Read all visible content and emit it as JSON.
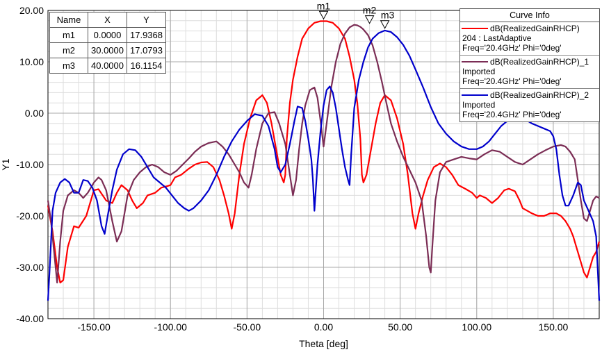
{
  "chart_data": {
    "type": "line",
    "xlabel": "Theta [deg]",
    "ylabel": "Y1",
    "xlim": [
      -180,
      180
    ],
    "ylim": [
      -40,
      20
    ],
    "xticks": [
      -150,
      -100,
      -50,
      0,
      50,
      100,
      150
    ],
    "xtick_labels": [
      "-150.00",
      "-100.00",
      "-50.00",
      "0.00",
      "50.00",
      "100.00",
      "150.00"
    ],
    "yticks": [
      20,
      10,
      0,
      -10,
      -20,
      -30,
      -40
    ],
    "ytick_labels": [
      "20.00",
      "10.00",
      "0.00",
      "-10.00",
      "-20.00",
      "-30.00",
      "-40.00"
    ],
    "grid": true,
    "legend_title": "Curve Info",
    "legend_position": "top-right",
    "series": [
      {
        "name": "dB(RealizedGainRHCP)",
        "desc": [
          "204 : LastAdaptive",
          "Freq='20.4GHz' Phi='0deg'"
        ],
        "color": "#ff0000",
        "x": [
          -180,
          -177,
          -174,
          -172,
          -170,
          -167,
          -163,
          -160,
          -155,
          -150,
          -147,
          -142,
          -138,
          -135,
          -132,
          -128,
          -125,
          -122,
          -118,
          -115,
          -110,
          -106,
          -102,
          -100,
          -97,
          -93,
          -88,
          -84,
          -80,
          -76,
          -72,
          -68,
          -65,
          -62,
          -60,
          -58,
          -55,
          -52,
          -48,
          -44,
          -40,
          -37,
          -34,
          -31,
          -28,
          -26,
          -25,
          -24,
          -22,
          -20,
          -17,
          -14,
          -10,
          -6,
          -2,
          0,
          2,
          6,
          10,
          14,
          17,
          20,
          22,
          24,
          25,
          26,
          28,
          31,
          34,
          37,
          40,
          44,
          48,
          52,
          55,
          58,
          60,
          62,
          65,
          68,
          72,
          76,
          80,
          84,
          88,
          93,
          97,
          100,
          102,
          106,
          110,
          114,
          118,
          121,
          125,
          128,
          130,
          133,
          136,
          140,
          144,
          148,
          152,
          155,
          158,
          161,
          163,
          165,
          167,
          170,
          172,
          174,
          176,
          178,
          180
        ],
        "y": [
          -18.0,
          -23.0,
          -30.0,
          -33.0,
          -32.5,
          -26.0,
          -22.0,
          -22.3,
          -20.0,
          -15.0,
          -14.8,
          -17.0,
          -17.5,
          -15.5,
          -14.0,
          -15.0,
          -17.0,
          -18.5,
          -17.5,
          -16.0,
          -15.5,
          -14.5,
          -14.2,
          -14.0,
          -12.5,
          -12.0,
          -10.8,
          -10.0,
          -9.6,
          -9.5,
          -10.5,
          -13.0,
          -16.0,
          -19.5,
          -22.5,
          -19.5,
          -12.0,
          -6.0,
          -1.0,
          2.5,
          3.5,
          2.0,
          -2.0,
          -7.0,
          -12.0,
          -13.5,
          -12.0,
          -5.0,
          2.0,
          6.5,
          11.0,
          14.5,
          16.5,
          17.6,
          17.9,
          17.9,
          17.9,
          17.6,
          16.5,
          14.5,
          11.0,
          6.5,
          2.0,
          -5.0,
          -12.0,
          -13.5,
          -12.0,
          -7.0,
          -2.0,
          2.0,
          3.5,
          2.5,
          -1.0,
          -6.0,
          -12.0,
          -19.5,
          -22.5,
          -19.5,
          -16.0,
          -13.0,
          -10.5,
          -9.8,
          -10.5,
          -12.0,
          -14.0,
          -14.8,
          -15.5,
          -16.5,
          -16.0,
          -16.5,
          -17.5,
          -16.5,
          -15.0,
          -14.7,
          -15.2,
          -17.0,
          -18.5,
          -19.0,
          -19.5,
          -20.0,
          -20.0,
          -19.5,
          -19.5,
          -20.0,
          -21.0,
          -22.5,
          -24.0,
          -26.0,
          -28.0,
          -31.0,
          -32.0,
          -30.0,
          -28.0,
          -27.0,
          -25.0
        ]
      },
      {
        "name": "dB(RealizedGainRHCP)_1",
        "desc": [
          "Imported",
          "Freq='20.4GHz' Phi='0deg'"
        ],
        "color": "#7b2d55",
        "x": [
          -180,
          -178,
          -176,
          -174,
          -172,
          -170,
          -167,
          -163,
          -160,
          -157,
          -154,
          -150,
          -147,
          -145,
          -142,
          -138,
          -135,
          -132,
          -128,
          -124,
          -120,
          -116,
          -112,
          -108,
          -104,
          -100,
          -96,
          -92,
          -88,
          -84,
          -80,
          -75,
          -70,
          -66,
          -62,
          -58,
          -55,
          -52,
          -49,
          -47,
          -44,
          -40,
          -36,
          -32,
          -29,
          -25,
          -22,
          -20,
          -18,
          -16,
          -14,
          -12,
          -9,
          -6,
          -4,
          -2,
          0,
          2,
          5,
          8,
          11,
          14,
          17,
          20,
          22,
          24,
          26,
          29,
          32,
          35,
          38,
          41,
          44,
          48,
          52,
          56,
          60,
          64,
          67,
          69,
          70,
          71,
          73,
          76,
          80,
          85,
          90,
          95,
          100,
          105,
          110,
          115,
          120,
          125,
          130,
          135,
          140,
          145,
          150,
          155,
          158,
          161,
          164,
          166,
          168,
          170,
          172,
          174,
          176,
          178,
          180
        ],
        "y": [
          -17.0,
          -21.0,
          -27.0,
          -33.0,
          -25.0,
          -19.0,
          -16.0,
          -15.0,
          -15.5,
          -16.5,
          -15.5,
          -13.5,
          -12.5,
          -13.0,
          -15.0,
          -21.0,
          -25.0,
          -23.0,
          -16.0,
          -13.0,
          -11.5,
          -10.5,
          -10.0,
          -10.5,
          -11.5,
          -12.0,
          -11.2,
          -10.0,
          -8.8,
          -7.5,
          -6.5,
          -5.8,
          -5.5,
          -6.5,
          -8.0,
          -10.0,
          -11.5,
          -13.5,
          -14.5,
          -12.0,
          -7.0,
          -2.0,
          0.0,
          0.2,
          -2.0,
          -6.0,
          -12.0,
          -16.0,
          -13.0,
          -7.0,
          -2.0,
          1.5,
          4.5,
          5.0,
          3.0,
          -1.5,
          -6.5,
          -2.0,
          5.0,
          10.0,
          13.5,
          15.5,
          16.7,
          17.2,
          17.1,
          16.8,
          16.3,
          15.2,
          13.2,
          10.0,
          6.2,
          2.0,
          -2.0,
          -5.5,
          -8.5,
          -11.0,
          -13.5,
          -17.0,
          -24.0,
          -30.0,
          -31.0,
          -26.0,
          -17.0,
          -11.5,
          -9.5,
          -9.0,
          -8.5,
          -8.8,
          -9.0,
          -8.0,
          -7.2,
          -7.5,
          -8.5,
          -9.5,
          -10.0,
          -9.0,
          -8.0,
          -7.2,
          -6.5,
          -6.2,
          -6.5,
          -7.5,
          -9.0,
          -13.0,
          -17.0,
          -20.5,
          -21.0,
          -19.0,
          -17.0,
          -16.2,
          -16.5
        ]
      },
      {
        "name": "dB(RealizedGainRHCP)_2",
        "desc": [
          "Imported",
          "Freq='20.4GHz' Phi='0deg'"
        ],
        "color": "#0000cc",
        "x": [
          -180,
          -179,
          -178,
          -177,
          -175,
          -172,
          -169,
          -166,
          -163,
          -160,
          -157,
          -154,
          -151,
          -148,
          -145,
          -143,
          -141,
          -138,
          -135,
          -131,
          -127,
          -123,
          -119,
          -115,
          -111,
          -107,
          -103,
          -99,
          -95,
          -91,
          -88,
          -85,
          -80,
          -75,
          -70,
          -65,
          -60,
          -55,
          -50,
          -45,
          -40,
          -36,
          -32,
          -30,
          -28,
          -25,
          -22,
          -19,
          -17,
          -14,
          -12,
          -10,
          -8,
          -7,
          -6,
          -4,
          -2,
          0,
          2,
          4,
          6,
          8,
          10,
          12,
          14,
          16,
          17,
          18,
          20,
          23,
          26,
          29,
          32,
          36,
          40,
          44,
          48,
          52,
          56,
          60,
          65,
          70,
          75,
          80,
          85,
          90,
          95,
          100,
          104,
          108,
          112,
          116,
          120,
          124,
          128,
          132,
          136,
          140,
          144,
          148,
          150,
          152,
          154,
          156,
          158,
          160,
          163,
          166,
          168,
          170,
          173,
          176,
          178,
          180
        ],
        "y": [
          -36.5,
          -31.0,
          -25.0,
          -19.0,
          -15.5,
          -13.5,
          -12.8,
          -13.5,
          -15.5,
          -15.5,
          -13.0,
          -13.2,
          -14.5,
          -17.0,
          -22.0,
          -23.5,
          -20.0,
          -15.0,
          -11.0,
          -8.0,
          -7.0,
          -7.2,
          -8.5,
          -10.5,
          -12.5,
          -13.5,
          -14.5,
          -16.0,
          -17.5,
          -18.5,
          -19.0,
          -18.5,
          -17.0,
          -15.0,
          -12.0,
          -8.5,
          -5.5,
          -3.2,
          -1.5,
          -0.2,
          -0.5,
          -2.5,
          -7.0,
          -10.5,
          -11.5,
          -10.0,
          -6.0,
          -1.5,
          1.3,
          1.0,
          -1.5,
          -5.0,
          -9.0,
          -13.0,
          -19.0,
          -10.0,
          -3.5,
          1.5,
          4.5,
          5.2,
          4.0,
          1.0,
          -3.0,
          -7.0,
          -10.5,
          -13.0,
          -14.0,
          -8.0,
          1.0,
          6.5,
          10.0,
          12.8,
          14.5,
          15.6,
          16.1,
          15.8,
          14.8,
          13.3,
          11.2,
          8.5,
          5.0,
          1.2,
          -2.0,
          -4.0,
          -5.5,
          -6.5,
          -7.0,
          -7.0,
          -6.5,
          -5.5,
          -4.0,
          -2.5,
          -1.5,
          -1.0,
          -1.0,
          -1.3,
          -2.0,
          -2.5,
          -3.0,
          -3.5,
          -4.5,
          -7.0,
          -12.0,
          -16.0,
          -18.0,
          -18.0,
          -16.0,
          -13.5,
          -14.0,
          -17.0,
          -19.0,
          -21.0,
          -24.0,
          -36.5
        ]
      }
    ],
    "markers": [
      {
        "name": "m1",
        "x": 0.0,
        "y": 17.9368,
        "x_text": "0.0000",
        "y_text": "17.9368"
      },
      {
        "name": "m2",
        "x": 30.0,
        "y": 17.0793,
        "x_text": "30.0000",
        "y_text": "17.0793"
      },
      {
        "name": "m3",
        "x": 40.0,
        "y": 16.1154,
        "x_text": "40.0000",
        "y_text": "16.1154"
      }
    ],
    "marker_table_headers": [
      "Name",
      "X",
      "Y"
    ]
  }
}
